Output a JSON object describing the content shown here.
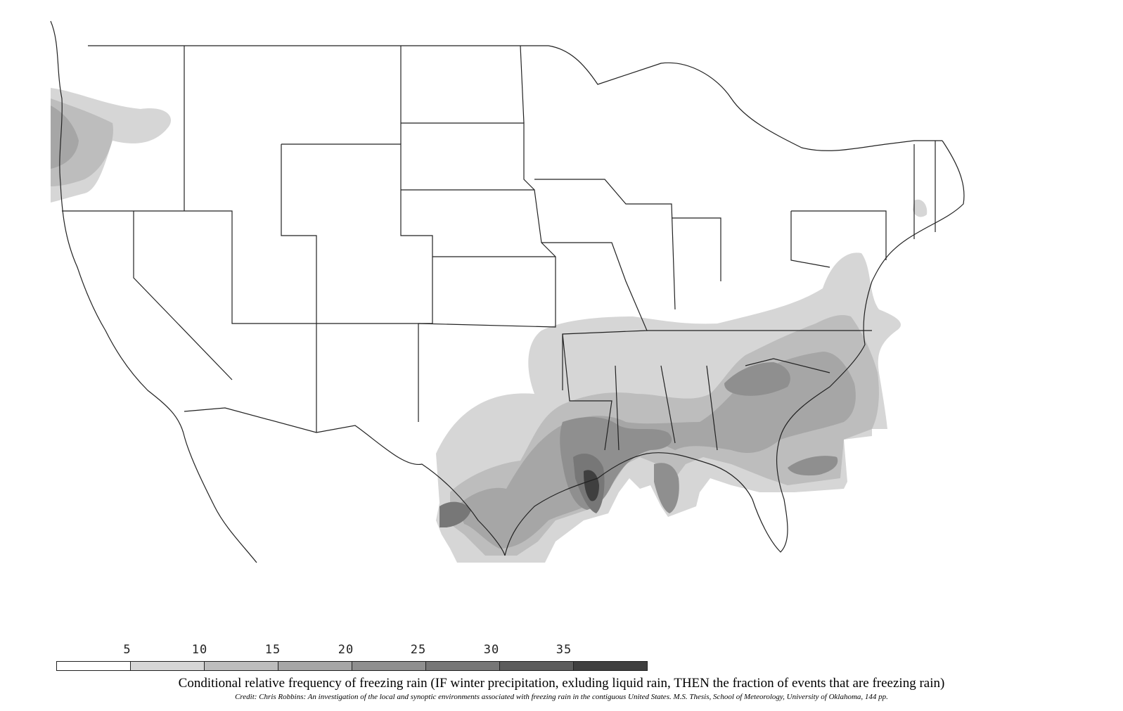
{
  "legend": {
    "ticks": [
      "5",
      "10",
      "15",
      "20",
      "25",
      "30",
      "35"
    ],
    "colors": [
      "#ffffff",
      "#d6d6d6",
      "#bdbdbd",
      "#a6a6a6",
      "#8f8f8f",
      "#777777",
      "#5c5c5c",
      "#3f3f3f"
    ]
  },
  "caption": "Conditional relative frequency of freezing rain (IF winter precipitation, exluding liquid rain, THEN the fraction of events that are freezing rain)",
  "credit": "Credit: Chris Robbins: An investigation of the local and synoptic environments associated with freezing rain in the contiguous United States. M.S. Thesis, School of Meteorology, University of Oklahoma, 144 pp."
}
